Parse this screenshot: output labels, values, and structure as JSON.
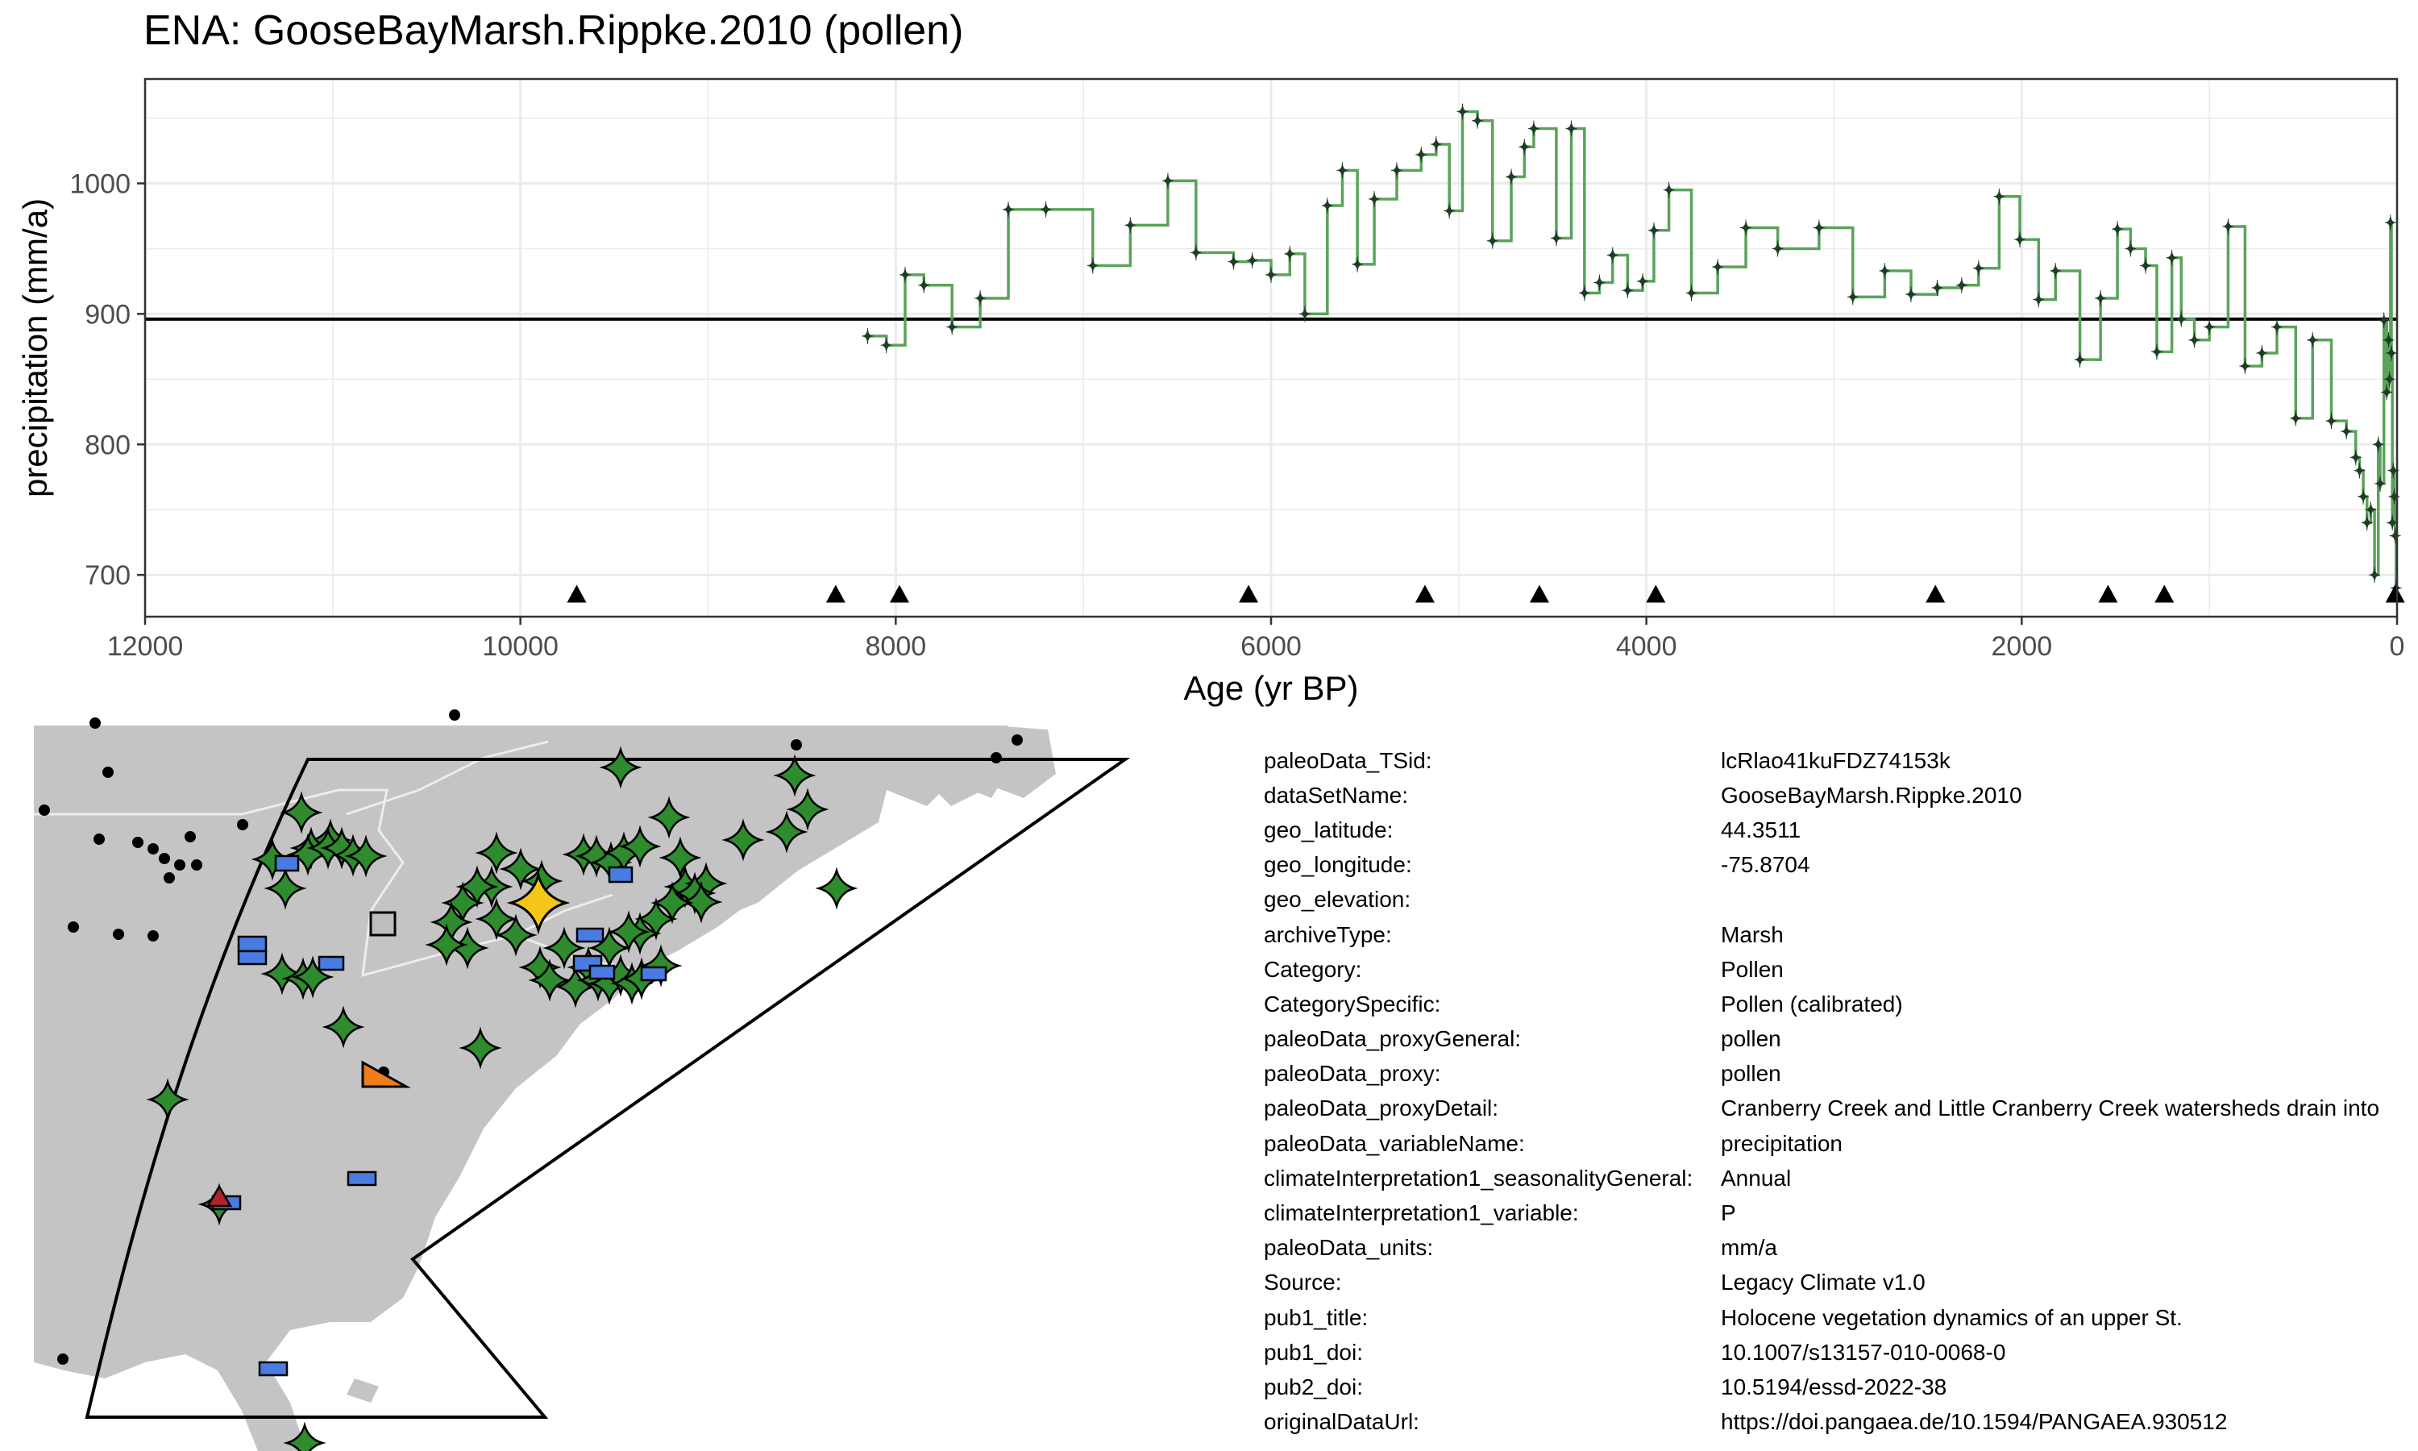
{
  "title": "ENA: GooseBayMarsh.Rippke.2010 (pollen)",
  "colors": {
    "series_line": "#5aa35a",
    "marker": "#1f3d26",
    "reference_line": "#000000",
    "land": "#c4c4c4",
    "border": "#e8e8e8",
    "green_site": "#2e8b2e",
    "blue_site": "#4a7be0",
    "orange_site": "#ef7d1a",
    "red_site": "#b3202a",
    "gray_site": "#bdbdbd",
    "highlight": "#f5c518"
  },
  "chart_data": {
    "type": "line",
    "title": "ENA: GooseBayMarsh.Rippke.2010 (pollen)",
    "xlabel": "Age (yr BP)",
    "ylabel": "precipitation (mm/a)",
    "xlim": [
      12000,
      0
    ],
    "ylim": [
      668,
      1080
    ],
    "x_reversed": true,
    "step": true,
    "grid": true,
    "xticks": [
      12000,
      10000,
      8000,
      6000,
      4000,
      2000,
      0
    ],
    "xtick_labels": [
      "12000",
      "10000",
      "8000",
      "6000",
      "4000",
      "2000",
      "0"
    ],
    "yticks": [
      700,
      800,
      900,
      1000
    ],
    "ytick_labels": [
      "700",
      "800",
      "900",
      "1000"
    ],
    "reference_line": 896,
    "chronology_markers_y": 685,
    "chronology_markers_x": [
      9700,
      8320,
      7980,
      6120,
      5180,
      4570,
      3950,
      2460,
      1540,
      1240,
      10
    ],
    "series": [
      {
        "x": [
          8150,
          8050,
          7950,
          7850,
          7700,
          7550,
          7400,
          7200,
          6950,
          6750,
          6550,
          6400,
          6200,
          6100,
          6000,
          5900,
          5820,
          5700,
          5620,
          5540,
          5450,
          5330,
          5200,
          5120,
          5050,
          4980,
          4900,
          4820,
          4720,
          4650,
          4600,
          4480,
          4400,
          4330,
          4250,
          4180,
          4100,
          4020,
          3960,
          3880,
          3760,
          3620,
          3470,
          3300,
          3080,
          2900,
          2730,
          2590,
          2450,
          2320,
          2230,
          2120,
          2010,
          1910,
          1820,
          1690,
          1580,
          1490,
          1420,
          1340,
          1280,
          1200,
          1150,
          1080,
          1000,
          900,
          810,
          720,
          640,
          540,
          450,
          350,
          270,
          220,
          200,
          180,
          160,
          140,
          120,
          100,
          90,
          70,
          55,
          45,
          40,
          35,
          30,
          25,
          20,
          15,
          10,
          5
        ],
        "values": [
          883,
          876,
          930,
          922,
          890,
          912,
          980,
          980,
          937,
          968,
          1002,
          947,
          940,
          941,
          930,
          946,
          900,
          983,
          1010,
          938,
          988,
          1010,
          1022,
          1030,
          979,
          1055,
          1048,
          956,
          1005,
          1028,
          1042,
          958,
          1042,
          916,
          924,
          945,
          918,
          925,
          964,
          995,
          916,
          936,
          966,
          950,
          966,
          913,
          933,
          915,
          920,
          922,
          935,
          990,
          957,
          911,
          933,
          865,
          912,
          965,
          950,
          937,
          871,
          943,
          896,
          880,
          890,
          967,
          860,
          870,
          890,
          820,
          880,
          818,
          810,
          790,
          780,
          760,
          740,
          750,
          700,
          800,
          770,
          895,
          840,
          880,
          850,
          970,
          870,
          740,
          780,
          760,
          730,
          690
        ]
      }
    ]
  },
  "map": {
    "site_types": [
      "green-star",
      "blue-rectangle",
      "orange-triangle",
      "red-triangle",
      "gray-square",
      "black-dot",
      "yellow-star-highlight"
    ]
  },
  "metadata": [
    {
      "key": "paleoData_TSid:",
      "value": "lcRlao41kuFDZ74153k"
    },
    {
      "key": "dataSetName:",
      "value": "GooseBayMarsh.Rippke.2010"
    },
    {
      "key": "geo_latitude:",
      "value": "44.3511"
    },
    {
      "key": "geo_longitude:",
      "value": "-75.8704"
    },
    {
      "key": "geo_elevation:",
      "value": ""
    },
    {
      "key": "archiveType:",
      "value": "Marsh"
    },
    {
      "key": "Category:",
      "value": "Pollen"
    },
    {
      "key": "CategorySpecific:",
      "value": "Pollen (calibrated)"
    },
    {
      "key": "paleoData_proxyGeneral:",
      "value": "pollen"
    },
    {
      "key": "paleoData_proxy:",
      "value": "pollen"
    },
    {
      "key": "paleoData_proxyDetail:",
      "value": "Cranberry Creek and Little Cranberry Creek watersheds drain into"
    },
    {
      "key": "paleoData_variableName:",
      "value": "precipitation"
    },
    {
      "key": "climateInterpretation1_seasonalityGeneral:",
      "value": "Annual"
    },
    {
      "key": "climateInterpretation1_variable:",
      "value": "P"
    },
    {
      "key": "paleoData_units:",
      "value": "mm/a"
    },
    {
      "key": "Source:",
      "value": "Legacy Climate v1.0"
    },
    {
      "key": "pub1_title:",
      "value": "Holocene vegetation dynamics of an upper St."
    },
    {
      "key": "pub1_doi:",
      "value": "10.1007/s13157-010-0068-0"
    },
    {
      "key": "pub2_doi:",
      "value": "10.5194/essd-2022-38"
    },
    {
      "key": "originalDataUrl:",
      "value": "https://doi.pangaea.de/10.1594/PANGAEA.930512"
    }
  ]
}
